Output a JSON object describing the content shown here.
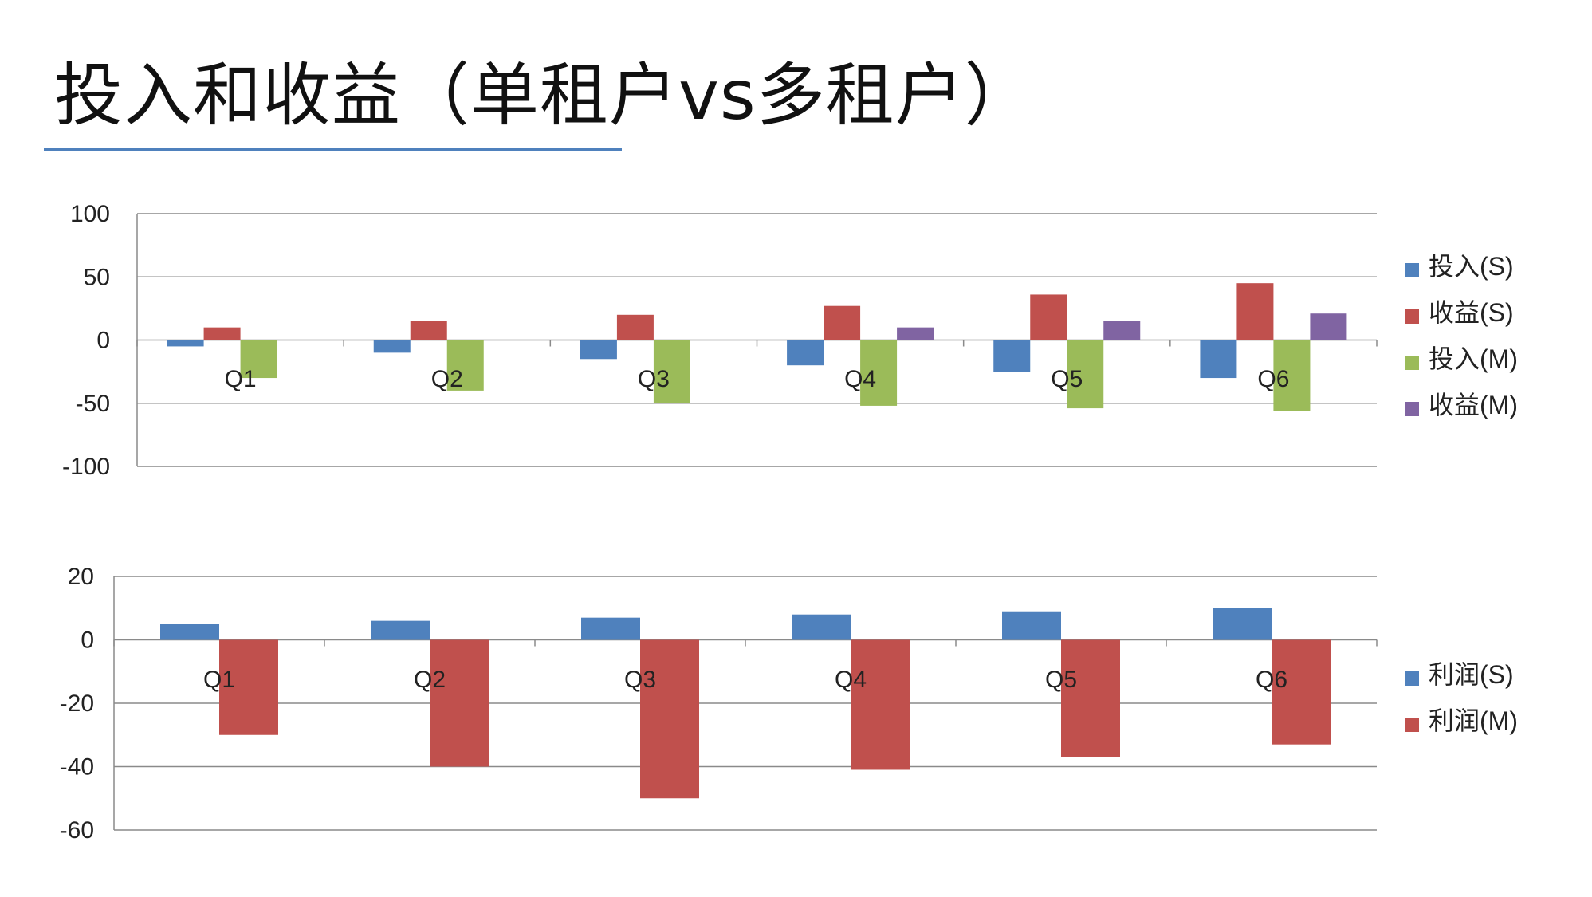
{
  "title": "投入和收益（单租户vs多租户）",
  "colors": {
    "title_rule": "#4f81bd",
    "blue": "#4f81bd",
    "red": "#c0504d",
    "green": "#9bbb59",
    "purple": "#8064a2",
    "grid": "#8a8a8a"
  },
  "chart_data": [
    {
      "type": "bar",
      "categories": [
        "Q1",
        "Q2",
        "Q3",
        "Q4",
        "Q5",
        "Q6"
      ],
      "series": [
        {
          "name": "投入(S)",
          "color": "#4f81bd",
          "values": [
            -5,
            -10,
            -15,
            -20,
            -25,
            -30
          ]
        },
        {
          "name": "收益(S)",
          "color": "#c0504d",
          "values": [
            10,
            15,
            20,
            27,
            36,
            45
          ]
        },
        {
          "name": "投入(M)",
          "color": "#9bbb59",
          "values": [
            -30,
            -40,
            -50,
            -52,
            -54,
            -56
          ]
        },
        {
          "name": "收益(M)",
          "color": "#8064a2",
          "values": [
            0,
            0,
            0,
            10,
            15,
            21
          ]
        }
      ],
      "ylim": [
        -100,
        100
      ],
      "yticks": [
        100,
        50,
        0,
        -50,
        -100
      ],
      "grid": true,
      "legend": "right"
    },
    {
      "type": "bar",
      "categories": [
        "Q1",
        "Q2",
        "Q3",
        "Q4",
        "Q5",
        "Q6"
      ],
      "series": [
        {
          "name": "利润(S)",
          "color": "#4f81bd",
          "values": [
            5,
            6,
            7,
            8,
            9,
            10
          ]
        },
        {
          "name": "利润(M)",
          "color": "#c0504d",
          "values": [
            -30,
            -40,
            -50,
            -41,
            -37,
            -33
          ]
        }
      ],
      "ylim": [
        -60,
        20
      ],
      "yticks": [
        20,
        0,
        -20,
        -40,
        -60
      ],
      "grid": true,
      "legend": "right"
    }
  ]
}
